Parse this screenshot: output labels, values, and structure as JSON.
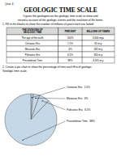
{
  "chart_data": [
    {
      "type": "table",
      "title": "GEOLOGIC TIME SCALE",
      "subtitle": [
        "It gives the geologists on the geologic time scale to show and",
        "record a account of the geologic events and the evolution of life forms."
      ],
      "annotations": [
        "Quiz 4",
        "1. Fill in the blanks to show the number of millions of years each era lasted."
      ],
      "columns": [
        "THE DIVISIONS OF\nGEOLOGIC TIME",
        "PERCENT",
        "MILLIONS OF YEARS"
      ],
      "rows": [
        [
          "The age of the earth",
          "100%",
          "4,600 mya"
        ],
        [
          "Cenozoic Era",
          "1.5%",
          "65 m.y."
        ],
        [
          "Mesozoic Era",
          "4%",
          "180 m.y."
        ],
        [
          "Paleozoic Era",
          "6.5%",
          "300 m.y."
        ],
        [
          "Precambrian Time",
          "88%",
          "4,055 m.y."
        ]
      ]
    },
    {
      "type": "pie",
      "annotations": [
        "2. Create a pie chart to show the percentage of time each Era of geologic",
        "Geologic time scale."
      ],
      "categories": [
        "Cenozoic Era",
        "Mesozoic Era",
        "Paleozoic Era",
        "Precambrian Time"
      ],
      "values": [
        1.5,
        4.0,
        6.5,
        88.0
      ],
      "value_labels": [
        "1.5%",
        "4%",
        "6.5%",
        "88%"
      ],
      "color": "#c5d8e8",
      "data_labels": true
    }
  ]
}
